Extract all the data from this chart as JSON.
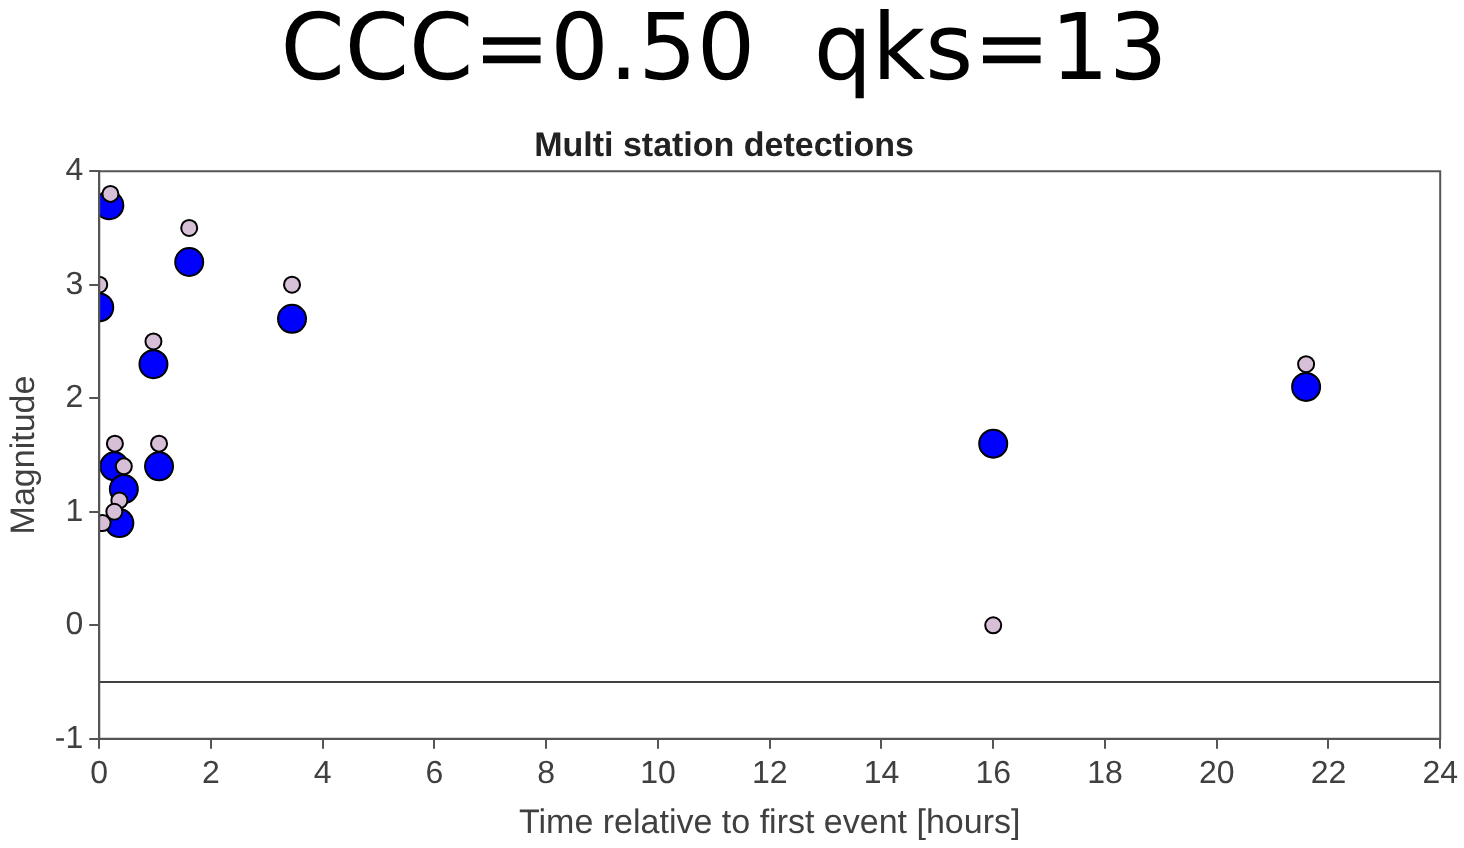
{
  "chart_data": {
    "type": "scatter",
    "title": "CCC=0.50  qks=13",
    "subtitle": "Multi station detections",
    "xlabel": "Time relative to first event [hours]",
    "ylabel": "Magnitude",
    "xlim": [
      0,
      24
    ],
    "xticks": [
      0,
      2,
      4,
      6,
      8,
      10,
      12,
      14,
      16,
      18,
      20,
      22,
      24
    ],
    "ylim": [
      -1,
      4
    ],
    "yticks": [
      -1,
      0,
      1,
      2,
      3,
      4
    ],
    "grid": false,
    "legend": false,
    "marker": "circle",
    "series": [
      {
        "color": "#0000ff",
        "x": [
          0.18,
          0,
          1.61,
          3.45,
          0.97,
          0.27,
          1.07,
          0.44,
          0.36,
          16.0,
          21.6
        ],
        "values": [
          3.7,
          2.8,
          3.2,
          2.7,
          2.3,
          1.4,
          1.4,
          1.2,
          0.9,
          1.6,
          2.1
        ]
      },
      {
        "color": "#d8bfd8",
        "x": [
          0.2,
          0,
          1.61,
          3.45,
          0.97,
          0.28,
          1.07,
          0.44,
          0.36,
          0.27,
          0.06,
          16.0,
          21.6
        ],
        "values": [
          3.8,
          3.0,
          3.5,
          3.0,
          2.5,
          1.6,
          1.6,
          1.4,
          1.1,
          1.0,
          0.9,
          0.0,
          2.3
        ]
      }
    ],
    "ref_lines": [
      {
        "axis": "y",
        "value": -0.5,
        "color": "#404040"
      }
    ]
  }
}
